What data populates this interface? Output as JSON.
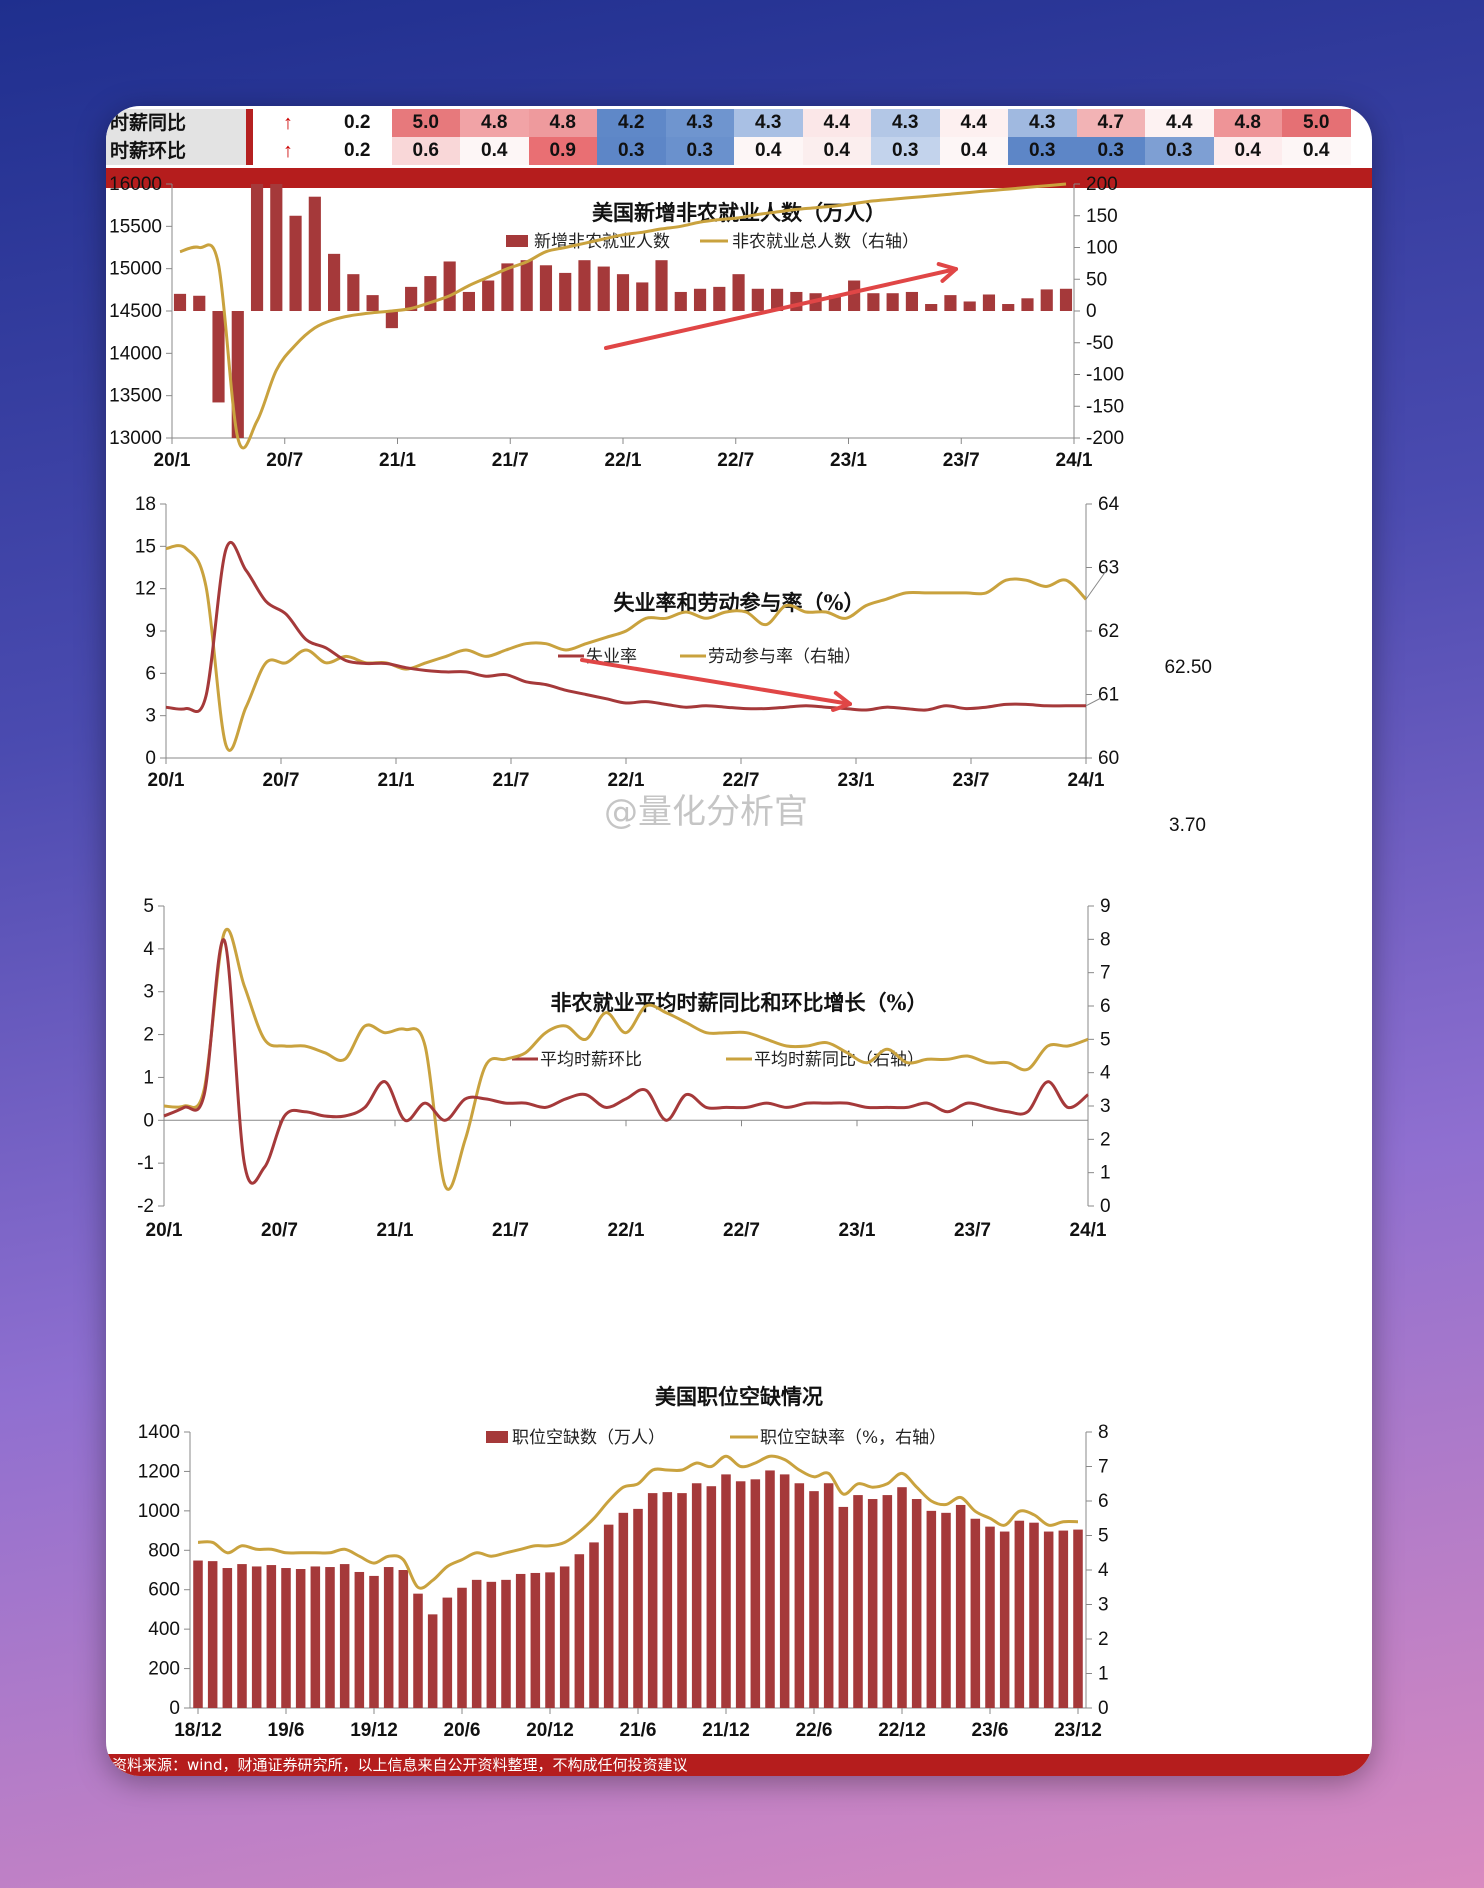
{
  "table": {
    "rows": [
      {
        "label": "时薪同比",
        "arrow": "↑",
        "values": [
          "0.2",
          "5.0",
          "4.8",
          "4.8",
          "4.2",
          "4.3",
          "4.3",
          "4.4",
          "4.3",
          "4.4",
          "4.3",
          "4.7",
          "4.4",
          "4.8",
          "5.0"
        ]
      },
      {
        "label": "时薪环比",
        "arrow": "↑",
        "values": [
          "0.2",
          "0.6",
          "0.4",
          "0.9",
          "0.3",
          "0.3",
          "0.4",
          "0.4",
          "0.3",
          "0.4",
          "0.3",
          "0.3",
          "0.3",
          "0.4",
          "0.4"
        ]
      }
    ],
    "row1_colors": [
      "#ffffff",
      "#e7797c",
      "#f1a3a6",
      "#ee9a9d",
      "#5f88c8",
      "#6f95cf",
      "#a9c0e4",
      "#fbe7e8",
      "#b3c7e6",
      "#fdf0f0",
      "#a0b9e0",
      "#f2b3b5",
      "#fdf2f2",
      "#ee9497",
      "#e57074"
    ],
    "row2_colors": [
      "#ffffff",
      "#f9d7d8",
      "#fdf6f6",
      "#e96f73",
      "#5d86c7",
      "#6a91cd",
      "#fdf6f6",
      "#fbeeee",
      "#c3d3ec",
      "#fdf6f6",
      "#5d86c7",
      "#5d86c7",
      "#7e9fd3",
      "#fdeced",
      "#fdf6f6"
    ]
  },
  "watermark": "@量化分析官",
  "footer": "资料来源：wind，财通证券研究所，以上信息来自公开资料整理，不构成任何投资建议",
  "chart_data": [
    {
      "type": "bar",
      "title": "美国新增非农就业人数（万人）",
      "legend": [
        "新增非农就业人数",
        "非农就业总人数（右轴）"
      ],
      "ylim_left": [
        13000,
        16000
      ],
      "yticks_left": [
        "13000",
        "13500",
        "14000",
        "14500",
        "15000",
        "15500",
        "16000"
      ],
      "ylim_right": [
        -200,
        200
      ],
      "yticks_right": [
        "-200",
        "-150",
        "-100",
        "-50",
        "0",
        "50",
        "100",
        "150",
        "200"
      ],
      "xticks": [
        "20/1",
        "20/7",
        "21/1",
        "21/7",
        "22/1",
        "22/7",
        "23/1",
        "23/7",
        "24/1"
      ],
      "bars_right_axis": [
        27,
        24,
        -144,
        -210,
        273,
        272,
        150,
        180,
        90,
        58,
        25,
        -27,
        38,
        55,
        78,
        30,
        48,
        75,
        80,
        72,
        60,
        80,
        70,
        58,
        45,
        80,
        30,
        35,
        38,
        58,
        35,
        35,
        30,
        28,
        25,
        48,
        28,
        28,
        30,
        11,
        25,
        15,
        26,
        11,
        20,
        34,
        35
      ],
      "line_total_left": [
        15200,
        15250,
        15050,
        13000,
        13200,
        13800,
        14100,
        14300,
        14400,
        14450,
        14480,
        14500,
        14530,
        14600,
        14680,
        14800,
        14900,
        15000,
        15080,
        15200,
        15250,
        15300,
        15350,
        15400,
        15430,
        15470,
        15500,
        15550,
        15580,
        15600,
        15640,
        15670,
        15700,
        15720,
        15740,
        15770,
        15800,
        15820,
        15840,
        15860,
        15880,
        15900,
        15920,
        15940,
        15960,
        15980,
        16000
      ]
    },
    {
      "type": "line",
      "title": "失业率和劳动参与率（%）",
      "legend": [
        "失业率",
        "劳动参与率（右轴）"
      ],
      "ylim_left": [
        0,
        18
      ],
      "yticks_left": [
        "0",
        "3",
        "6",
        "9",
        "12",
        "15",
        "18"
      ],
      "ylim_right": [
        60,
        64
      ],
      "yticks_right": [
        "60",
        "61",
        "62",
        "63",
        "64"
      ],
      "xticks": [
        "20/1",
        "20/7",
        "21/1",
        "21/7",
        "22/1",
        "22/7",
        "23/1",
        "23/7",
        "24/1"
      ],
      "unemployment": [
        3.6,
        3.5,
        4.4,
        14.8,
        13.3,
        11.1,
        10.2,
        8.4,
        7.8,
        6.9,
        6.7,
        6.7,
        6.4,
        6.2,
        6.1,
        6.1,
        5.8,
        5.9,
        5.4,
        5.2,
        4.8,
        4.5,
        4.2,
        3.9,
        4.0,
        3.8,
        3.6,
        3.7,
        3.6,
        3.5,
        3.5,
        3.6,
        3.7,
        3.6,
        3.5,
        3.4,
        3.6,
        3.5,
        3.4,
        3.7,
        3.5,
        3.6,
        3.8,
        3.8,
        3.7,
        3.7,
        3.7
      ],
      "participation": [
        63.3,
        63.3,
        62.7,
        60.2,
        60.8,
        61.5,
        61.5,
        61.7,
        61.5,
        61.6,
        61.5,
        61.5,
        61.4,
        61.5,
        61.6,
        61.7,
        61.6,
        61.7,
        61.8,
        61.8,
        61.7,
        61.8,
        61.9,
        62.0,
        62.2,
        62.2,
        62.3,
        62.2,
        62.3,
        62.3,
        62.1,
        62.4,
        62.3,
        62.3,
        62.2,
        62.4,
        62.5,
        62.6,
        62.6,
        62.6,
        62.6,
        62.6,
        62.8,
        62.8,
        62.7,
        62.8,
        62.5
      ],
      "annotations": [
        "62.50",
        "3.70"
      ]
    },
    {
      "type": "line",
      "title": "非农就业平均时薪同比和环比增长（%）",
      "legend": [
        "平均时薪环比",
        "平均时薪同比（右轴）"
      ],
      "ylim_left": [
        -2,
        5
      ],
      "yticks_left": [
        "-2",
        "-1",
        "0",
        "1",
        "2",
        "3",
        "4",
        "5"
      ],
      "ylim_right": [
        0,
        9
      ],
      "yticks_right": [
        "0",
        "1",
        "2",
        "3",
        "4",
        "5",
        "6",
        "7",
        "8",
        "9"
      ],
      "xticks": [
        "20/1",
        "20/7",
        "21/1",
        "21/7",
        "22/1",
        "22/7",
        "23/1",
        "23/7",
        "24/1"
      ],
      "mom": [
        0.1,
        0.3,
        0.6,
        4.2,
        -1.0,
        -1.1,
        0.1,
        0.2,
        0.1,
        0.1,
        0.3,
        0.9,
        0.0,
        0.4,
        0.0,
        0.5,
        0.5,
        0.4,
        0.4,
        0.3,
        0.5,
        0.6,
        0.3,
        0.5,
        0.7,
        0.0,
        0.6,
        0.3,
        0.3,
        0.3,
        0.4,
        0.3,
        0.4,
        0.4,
        0.4,
        0.3,
        0.3,
        0.3,
        0.4,
        0.2,
        0.4,
        0.3,
        0.2,
        0.2,
        0.9,
        0.3,
        0.6
      ],
      "yoy": [
        3.0,
        3.0,
        3.5,
        8.2,
        6.6,
        5.0,
        4.8,
        4.8,
        4.6,
        4.4,
        5.4,
        5.2,
        5.3,
        4.8,
        0.6,
        2.0,
        4.2,
        4.4,
        4.6,
        5.2,
        5.4,
        5.0,
        5.8,
        5.2,
        6.0,
        5.8,
        5.5,
        5.2,
        5.2,
        5.2,
        5.0,
        4.8,
        4.8,
        4.9,
        4.6,
        4.3,
        4.7,
        4.3,
        4.4,
        4.4,
        4.5,
        4.3,
        4.3,
        4.1,
        4.8,
        4.8,
        5.0
      ]
    },
    {
      "type": "bar",
      "title": "美国职位空缺情况",
      "legend": [
        "职位空缺数（万人）",
        "职位空缺率（%，右轴）"
      ],
      "ylim_left": [
        0,
        1400
      ],
      "yticks_left": [
        "0",
        "200",
        "400",
        "600",
        "800",
        "1000",
        "1200",
        "1400"
      ],
      "ylim_right": [
        0,
        8
      ],
      "yticks_right": [
        "0",
        "1",
        "2",
        "3",
        "4",
        "5",
        "6",
        "7",
        "8"
      ],
      "xticks": [
        "18/12",
        "19/6",
        "19/12",
        "20/6",
        "20/12",
        "21/6",
        "21/12",
        "22/6",
        "22/12",
        "23/6",
        "23/12"
      ],
      "openings": [
        748,
        745,
        710,
        730,
        718,
        725,
        710,
        705,
        718,
        715,
        730,
        690,
        670,
        715,
        700,
        580,
        475,
        560,
        610,
        650,
        640,
        650,
        680,
        685,
        688,
        718,
        780,
        840,
        930,
        990,
        1010,
        1090,
        1095,
        1090,
        1140,
        1125,
        1185,
        1150,
        1160,
        1205,
        1185,
        1140,
        1100,
        1140,
        1020,
        1080,
        1060,
        1080,
        1120,
        1060,
        1000,
        990,
        1030,
        960,
        920,
        895,
        950,
        940,
        895,
        900,
        905
      ],
      "rate": [
        4.8,
        4.8,
        4.5,
        4.7,
        4.6,
        4.6,
        4.5,
        4.5,
        4.5,
        4.5,
        4.6,
        4.4,
        4.2,
        4.4,
        4.3,
        3.5,
        3.7,
        4.1,
        4.3,
        4.5,
        4.4,
        4.5,
        4.6,
        4.7,
        4.7,
        4.8,
        5.1,
        5.5,
        6.0,
        6.4,
        6.5,
        6.9,
        6.9,
        6.9,
        7.1,
        7.0,
        7.3,
        7.0,
        7.1,
        7.3,
        7.2,
        6.9,
        6.7,
        6.8,
        6.2,
        6.5,
        6.4,
        6.5,
        6.8,
        6.4,
        6.0,
        5.9,
        6.1,
        5.7,
        5.5,
        5.3,
        5.7,
        5.6,
        5.3,
        5.4,
        5.4
      ]
    }
  ]
}
